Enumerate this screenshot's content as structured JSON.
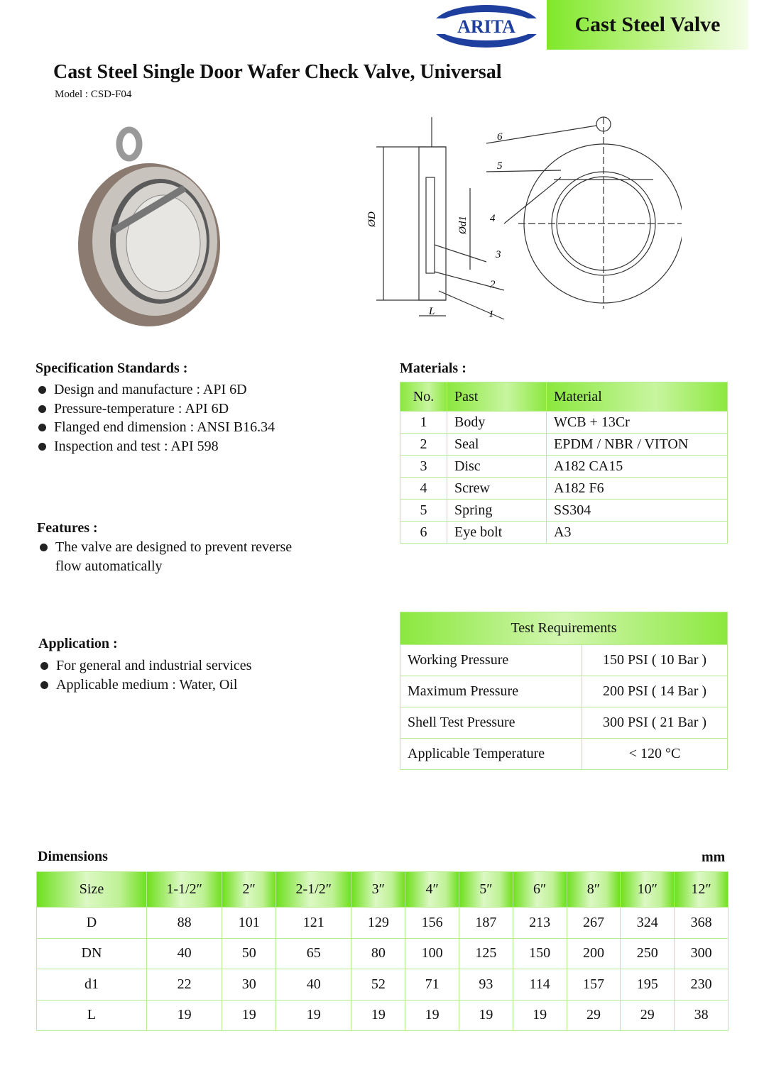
{
  "header": {
    "logo_text": "ARITA",
    "banner": "Cast Steel Valve"
  },
  "title": "Cast Steel Single Door Wafer Check Valve, Universal",
  "model": "Model : CSD-F04",
  "drawing": {
    "labels": [
      "6",
      "5",
      "4",
      "3",
      "2",
      "1"
    ],
    "dims": [
      "ØD",
      "Ød1",
      "L"
    ]
  },
  "spec": {
    "heading": "Specification Standards :",
    "items": [
      "Design and manufacture : API 6D",
      "Pressure-temperature : API 6D",
      "Flanged end dimension : ANSI B16.34",
      "Inspection and test : API 598"
    ]
  },
  "features": {
    "heading": "Features :",
    "items": [
      "The valve are designed to prevent reverse flow automatically"
    ]
  },
  "application": {
    "heading": "Application :",
    "items": [
      "For general and industrial services",
      "Applicable medium : Water, Oil"
    ]
  },
  "materials": {
    "heading": "Materials :",
    "columns": [
      "No.",
      "Past",
      "Material"
    ],
    "rows": [
      [
        "1",
        "Body",
        "WCB + 13Cr"
      ],
      [
        "2",
        "Seal",
        "EPDM / NBR / VITON"
      ],
      [
        "3",
        "Disc",
        "A182 CA15"
      ],
      [
        "4",
        "Screw",
        "A182 F6"
      ],
      [
        "5",
        "Spring",
        "SS304"
      ],
      [
        "6",
        "Eye bolt",
        "A3"
      ]
    ]
  },
  "test": {
    "heading": "Test  Requirements",
    "rows": [
      [
        "Working Pressure",
        "150 PSI ( 10 Bar )"
      ],
      [
        "Maximum Pressure",
        "200 PSI ( 14 Bar )"
      ],
      [
        "Shell Test Pressure",
        "300 PSI ( 21 Bar )"
      ],
      [
        "Applicable Temperature",
        "< 120 °C"
      ]
    ]
  },
  "dimensions": {
    "heading": "Dimensions",
    "unit": "mm",
    "columns": [
      "Size",
      "1-1/2″",
      "2″",
      "2-1/2″",
      "3″",
      "4″",
      "5″",
      "6″",
      "8″",
      "10″",
      "12″"
    ],
    "rows": [
      [
        "D",
        "88",
        "101",
        "121",
        "129",
        "156",
        "187",
        "213",
        "267",
        "324",
        "368"
      ],
      [
        "DN",
        "40",
        "50",
        "65",
        "80",
        "100",
        "125",
        "150",
        "200",
        "250",
        "300"
      ],
      [
        "d1",
        "22",
        "30",
        "40",
        "52",
        "71",
        "93",
        "114",
        "157",
        "195",
        "230"
      ],
      [
        "L",
        "19",
        "19",
        "19",
        "19",
        "19",
        "19",
        "19",
        "29",
        "29",
        "38"
      ]
    ]
  },
  "colors": {
    "accent_green": "#7fe82a",
    "logo_blue": "#1f3f9e"
  }
}
